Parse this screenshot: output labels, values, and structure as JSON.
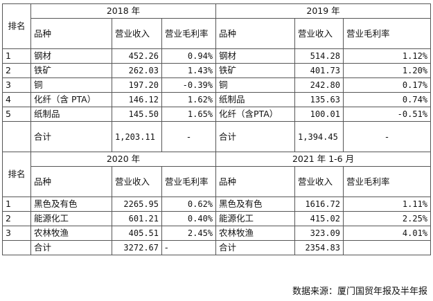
{
  "rank_label": "排名",
  "top": {
    "left": {
      "year": "2018 年",
      "col_product": "品种",
      "col_revenue": "营业收入",
      "col_margin": "营业毛利率",
      "rows": [
        {
          "rank": "1",
          "product": "钢材",
          "revenue": "452.26",
          "margin": "0.94%"
        },
        {
          "rank": "2",
          "product": "铁矿",
          "revenue": "262.03",
          "margin": "1.43%"
        },
        {
          "rank": "3",
          "product": "铜",
          "revenue": "197.20",
          "margin": "-0.39%"
        },
        {
          "rank": "4",
          "product": "化纤（含 PTA）",
          "revenue": "146.12",
          "margin": "1.62%"
        },
        {
          "rank": "5",
          "product": "纸制品",
          "revenue": "145.50",
          "margin": "1.65%"
        }
      ],
      "total_label": "合计",
      "total_revenue": "1,203.11",
      "total_margin": "-"
    },
    "right": {
      "year": "2019 年",
      "col_product": "品种",
      "col_revenue": "营业收入",
      "col_margin": "营业毛利率",
      "rows": [
        {
          "product": "钢材",
          "revenue": "514.28",
          "margin": "1.12%"
        },
        {
          "product": "铁矿",
          "revenue": "401.73",
          "margin": "1.20%"
        },
        {
          "product": "铜",
          "revenue": "242.80",
          "margin": "0.17%"
        },
        {
          "product": "纸制品",
          "revenue": "135.63",
          "margin": "0.74%"
        },
        {
          "product": "化纤（含PTA）",
          "revenue": "100.01",
          "margin": "-0.51%"
        }
      ],
      "total_label": "合计",
      "total_revenue": "1,394.45",
      "total_margin": "-"
    }
  },
  "bottom": {
    "left": {
      "year": "2020 年",
      "col_product": "品种",
      "col_revenue": "营业收入",
      "col_margin": "营业毛利率",
      "rows": [
        {
          "rank": "1",
          "product": "黑色及有色",
          "revenue": "2265.95",
          "margin": "0.62%"
        },
        {
          "rank": "2",
          "product": "能源化工",
          "revenue": "601.21",
          "margin": "0.40%"
        },
        {
          "rank": "3",
          "product": "农林牧渔",
          "revenue": "405.51",
          "margin": "2.45%"
        }
      ],
      "total_label": "合计",
      "total_revenue": "3272.67",
      "total_margin": "-"
    },
    "right": {
      "year": "2021 年 1-6 月",
      "col_product": "品种",
      "col_revenue": "营业收入",
      "col_margin": "营业毛利率",
      "rows": [
        {
          "product": "黑色及有色",
          "revenue": "1616.72",
          "margin": "1.11%"
        },
        {
          "product": "能源化工",
          "revenue": "415.02",
          "margin": "2.25%"
        },
        {
          "product": "农林牧渔",
          "revenue": "323.09",
          "margin": "4.01%"
        }
      ],
      "total_label": "合计",
      "total_revenue": "2354.83",
      "total_margin": "-"
    }
  },
  "source": "数据来源：厦门国贸年报及半年报"
}
